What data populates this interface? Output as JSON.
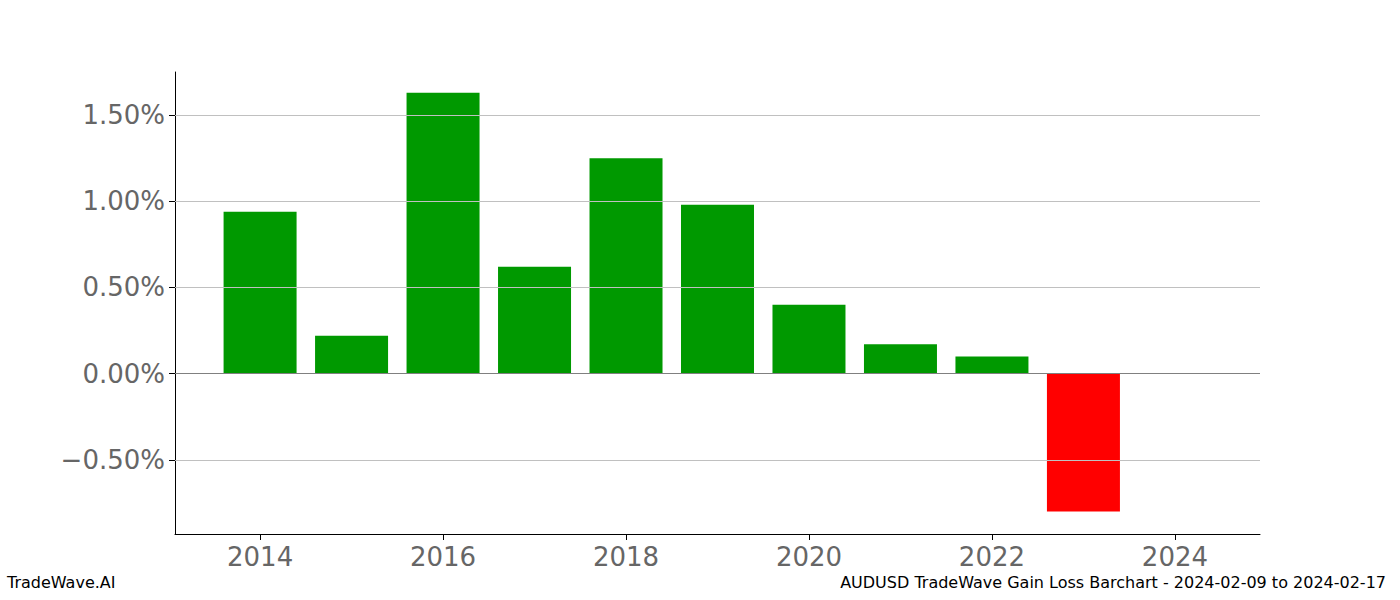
{
  "chart_data": {
    "type": "bar",
    "title": "AUDUSD TradeWave Gain Loss Barchart - 2024-02-09 to 2024-02-17",
    "annotations": [
      "TradeWave.AI"
    ],
    "x": [
      2014,
      2015,
      2016,
      2017,
      2018,
      2019,
      2020,
      2021,
      2022,
      2023
    ],
    "values": [
      0.94,
      0.22,
      1.63,
      0.62,
      1.25,
      0.98,
      0.4,
      0.17,
      0.1,
      -0.8
    ],
    "colors": [
      "#009900",
      "#009900",
      "#009900",
      "#009900",
      "#009900",
      "#009900",
      "#009900",
      "#009900",
      "#009900",
      "#ff0000"
    ],
    "xlim": [
      2013.07,
      2024.93
    ],
    "xticks": [
      2014,
      2016,
      2018,
      2020,
      2022,
      2024
    ],
    "ylim": [
      -0.93,
      1.75
    ],
    "yticks": [
      {
        "value": -0.5,
        "label": "−0.50%"
      },
      {
        "value": 0,
        "label": "0.00%"
      },
      {
        "value": 0.5,
        "label": "0.50%"
      },
      {
        "value": 1.0,
        "label": "1.00%"
      },
      {
        "value": 1.5,
        "label": "1.50%"
      }
    ],
    "grid": true
  }
}
